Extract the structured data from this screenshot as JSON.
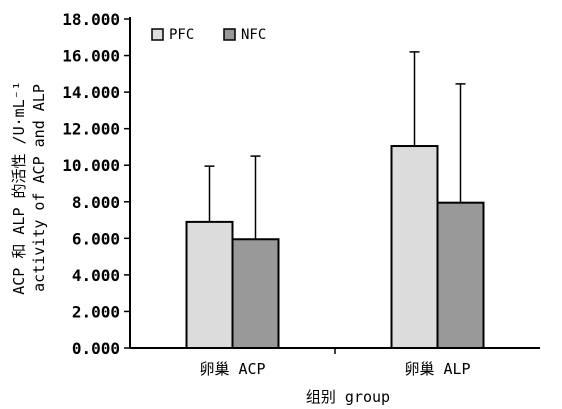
{
  "chart_data": {
    "type": "bar",
    "categories": [
      "卵巢 ACP",
      "卵巢 ALP"
    ],
    "series": [
      {
        "name": "PFC",
        "values": [
          6.9,
          11.05
        ],
        "errors": [
          3.05,
          5.15
        ],
        "color": "#dcdcdc"
      },
      {
        "name": "NFC",
        "values": [
          5.95,
          7.95
        ],
        "errors": [
          4.55,
          6.5
        ],
        "color": "#999999"
      }
    ],
    "xlabel": "组别  group",
    "ylabel_line1": "ACP 和 ALP 的活性 /U·mL⁻¹",
    "ylabel_line2": "activity of ACP and ALP",
    "ylim": [
      0,
      18
    ],
    "yticks": [
      "0.000",
      "2.000",
      "4.000",
      "6.000",
      "8.000",
      "10.000",
      "12.000",
      "14.000",
      "16.000",
      "18.000"
    ],
    "ytick_values": [
      0,
      2,
      4,
      6,
      8,
      10,
      12,
      14,
      16,
      18
    ],
    "legend_position": "top-left",
    "grid": false
  }
}
